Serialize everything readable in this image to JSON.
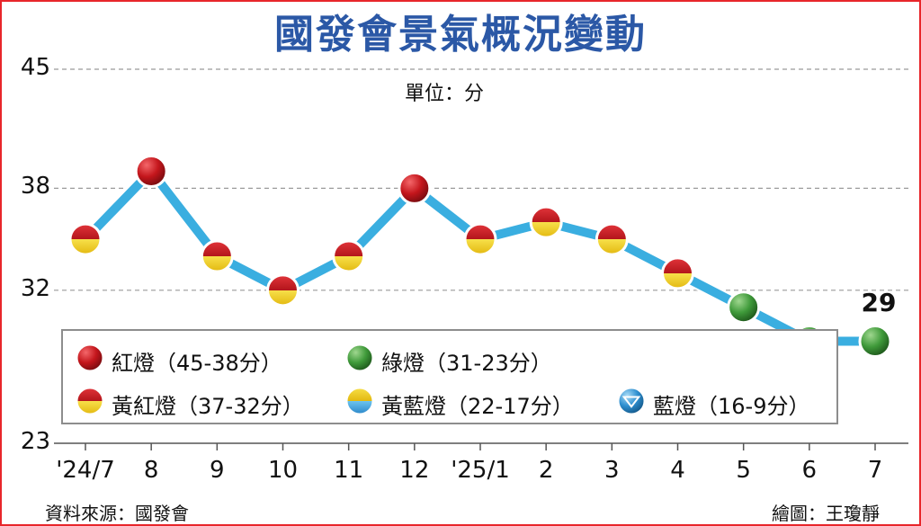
{
  "title": "國發會景氣概況變動",
  "unit_label": "單位：分",
  "source": "資料來源：國發會",
  "credit": "繪圖：王瓊靜",
  "colors": {
    "title": "#2b58a6",
    "line": "#3aaee0",
    "red": "#c4161c",
    "yellow": "#f2d21b",
    "green": "#3f9a3a",
    "blue": "#2e8fd0",
    "frame": "#e8262b"
  },
  "legend": [
    {
      "key": "red",
      "label": "紅燈（45-38分）"
    },
    {
      "key": "green",
      "label": "綠燈（31-23分）"
    },
    {
      "key": "red-yellow",
      "label": "黃紅燈（37-32分）"
    },
    {
      "key": "yellow-blue",
      "label": "黃藍燈（22-17分）"
    },
    {
      "key": "blue",
      "label": "藍燈（16-9分）"
    }
  ],
  "chart_data": {
    "type": "line",
    "title": "國發會景氣概況變動",
    "ylabel": "單位：分",
    "ylim": [
      23,
      45
    ],
    "yticks": [
      45,
      38,
      32,
      23
    ],
    "grid": true,
    "legend_position": "bottom-left",
    "categories": [
      "'24/7",
      "8",
      "9",
      "10",
      "11",
      "12",
      "'25/1",
      "2",
      "3",
      "4",
      "5",
      "6",
      "7"
    ],
    "series": [
      {
        "values": [
          35,
          39,
          34,
          32,
          34,
          38,
          35,
          36,
          35,
          33,
          31,
          29,
          29
        ],
        "signals": [
          "red-yellow",
          "red",
          "red-yellow",
          "red-yellow",
          "red-yellow",
          "red",
          "red-yellow",
          "red-yellow",
          "red-yellow",
          "red-yellow",
          "green",
          "green",
          "green"
        ]
      }
    ],
    "annotations": [
      {
        "category": "7",
        "text": "29"
      }
    ]
  }
}
